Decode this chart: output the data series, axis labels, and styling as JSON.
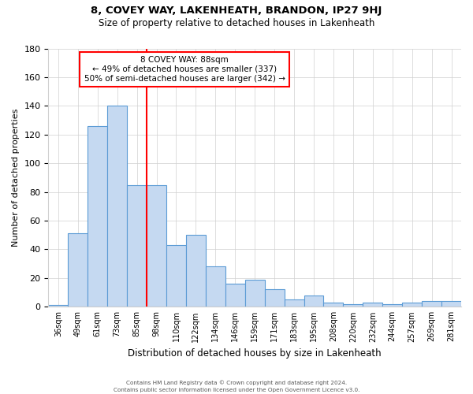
{
  "title": "8, COVEY WAY, LAKENHEATH, BRANDON, IP27 9HJ",
  "subtitle": "Size of property relative to detached houses in Lakenheath",
  "xlabel": "Distribution of detached houses by size in Lakenheath",
  "ylabel": "Number of detached properties",
  "categories": [
    "36sqm",
    "49sqm",
    "61sqm",
    "73sqm",
    "85sqm",
    "98sqm",
    "110sqm",
    "122sqm",
    "134sqm",
    "146sqm",
    "159sqm",
    "171sqm",
    "183sqm",
    "195sqm",
    "208sqm",
    "220sqm",
    "232sqm",
    "244sqm",
    "257sqm",
    "269sqm",
    "281sqm"
  ],
  "values": [
    1,
    51,
    126,
    140,
    85,
    85,
    43,
    50,
    28,
    16,
    19,
    12,
    5,
    8,
    3,
    2,
    3,
    2,
    3,
    4,
    4
  ],
  "bar_color": "#c5d9f1",
  "bar_edge_color": "#5b9bd5",
  "red_line_x": 4.5,
  "annotation_title": "8 COVEY WAY: 88sqm",
  "annotation_line1": "← 49% of detached houses are smaller (337)",
  "annotation_line2": "50% of semi-detached houses are larger (342) →",
  "ylim": [
    0,
    180
  ],
  "yticks": [
    0,
    20,
    40,
    60,
    80,
    100,
    120,
    140,
    160,
    180
  ],
  "footer1": "Contains HM Land Registry data © Crown copyright and database right 2024.",
  "footer2": "Contains public sector information licensed under the Open Government Licence v3.0.",
  "background_color": "#ffffff",
  "grid_color": "#d0d0d0"
}
